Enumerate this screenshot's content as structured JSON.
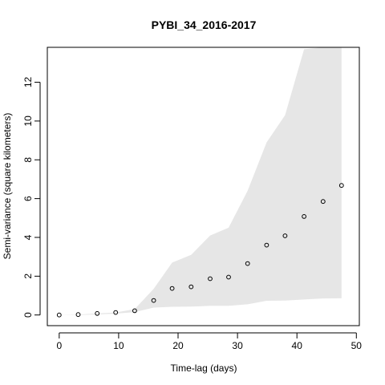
{
  "chart_data": {
    "type": "scatter",
    "title": "PYBI_34_2016-2017",
    "xlabel": "Time-lag (days)",
    "ylabel": "Semi-variance (square kilometers)",
    "xlim": [
      -2,
      50.5
    ],
    "ylim": [
      -0.55,
      13.8
    ],
    "x_ticks": [
      0,
      10,
      20,
      30,
      40,
      50
    ],
    "y_ticks": [
      0,
      2,
      4,
      6,
      8,
      10,
      12
    ],
    "grid": false,
    "legend": "none",
    "points": {
      "x": [
        0,
        3.2,
        6.4,
        9.5,
        12.7,
        15.9,
        19.0,
        22.2,
        25.4,
        28.5,
        31.7,
        34.9,
        38.0,
        41.2,
        44.4,
        47.5
      ],
      "y": [
        0.0,
        0.02,
        0.08,
        0.13,
        0.22,
        0.75,
        1.37,
        1.45,
        1.87,
        1.95,
        2.65,
        3.6,
        4.08,
        5.08,
        5.85,
        6.68
      ]
    },
    "envelope": {
      "x": [
        0,
        3.2,
        6.4,
        9.5,
        12.7,
        15.9,
        19.0,
        22.2,
        25.4,
        28.5,
        31.7,
        34.9,
        38.0,
        41.2,
        44.4,
        47.5
      ],
      "upper": [
        0.0,
        0.02,
        0.08,
        0.13,
        0.3,
        1.35,
        2.7,
        3.1,
        4.1,
        4.5,
        6.4,
        8.9,
        10.3,
        13.7,
        13.9,
        13.9
      ],
      "lower": [
        0.0,
        0.0,
        0.03,
        0.07,
        0.15,
        0.38,
        0.42,
        0.43,
        0.47,
        0.47,
        0.55,
        0.73,
        0.74,
        0.8,
        0.85,
        0.86
      ]
    },
    "colors": {
      "envelope": "#e6e6e6",
      "points": "#000000",
      "axes": "#000000"
    }
  }
}
